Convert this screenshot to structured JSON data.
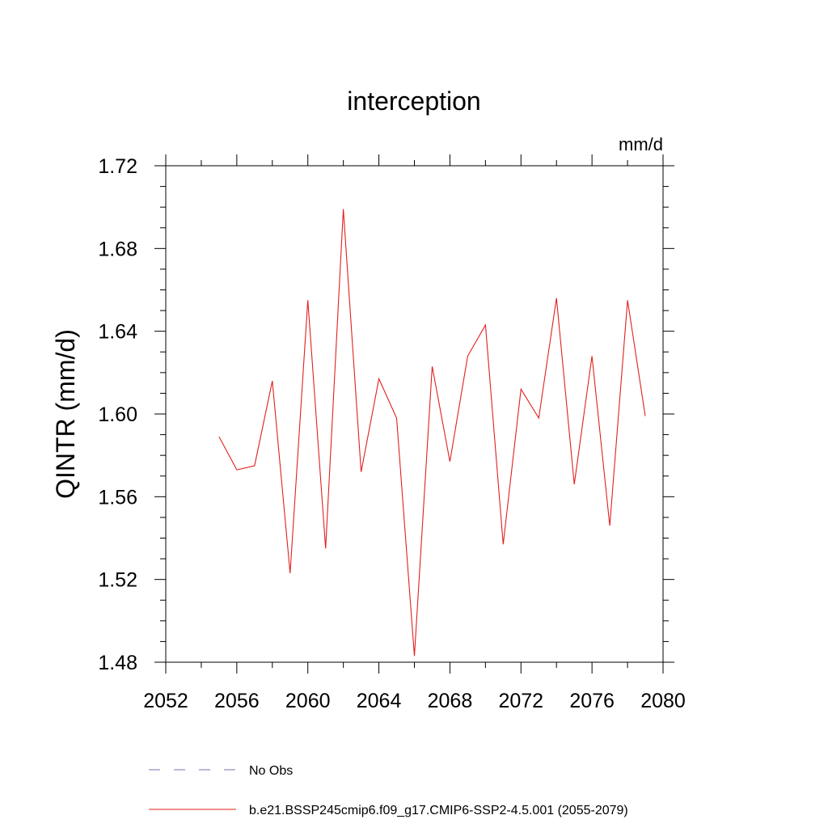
{
  "chart_data": {
    "type": "line",
    "title": "interception",
    "units_label": "mm/d",
    "xlabel": "",
    "ylabel": "QINTR  (mm/d)",
    "xlim": [
      2052,
      2080
    ],
    "ylim": [
      1.48,
      1.72
    ],
    "x_ticks": [
      2052,
      2056,
      2060,
      2064,
      2068,
      2072,
      2076,
      2080
    ],
    "y_ticks": [
      1.48,
      1.52,
      1.56,
      1.6,
      1.64,
      1.68,
      1.72
    ],
    "x_tick_labels": [
      "2052",
      "2056",
      "2060",
      "2064",
      "2068",
      "2072",
      "2076",
      "2080"
    ],
    "y_tick_labels": [
      "1.48",
      "1.52",
      "1.56",
      "1.60",
      "1.64",
      "1.68",
      "1.72"
    ],
    "grid": false,
    "legend_position": "bottom",
    "series": [
      {
        "name": "b.e21.BSSP245cmip6.f09_g17.CMIP6-SSP2-4.5.001 (2055-2079)",
        "color": "#e0201e",
        "style": "solid",
        "x": [
          2055,
          2056,
          2057,
          2058,
          2059,
          2060,
          2061,
          2062,
          2063,
          2064,
          2065,
          2066,
          2067,
          2068,
          2069,
          2070,
          2071,
          2072,
          2073,
          2074,
          2075,
          2076,
          2077,
          2078,
          2079
        ],
        "values": [
          1.589,
          1.573,
          1.575,
          1.616,
          1.523,
          1.655,
          1.535,
          1.699,
          1.572,
          1.617,
          1.598,
          1.483,
          1.623,
          1.577,
          1.628,
          1.643,
          1.537,
          1.612,
          1.598,
          1.656,
          1.566,
          1.628,
          1.546,
          1.655,
          1.599
        ]
      }
    ],
    "legend": [
      {
        "label": "No Obs",
        "color": "#7b6fb8",
        "style": "dashed"
      },
      {
        "label": "b.e21.BSSP245cmip6.f09_g17.CMIP6-SSP2-4.5.001 (2055-2079)",
        "color": "#e0201e",
        "style": "solid"
      }
    ]
  }
}
